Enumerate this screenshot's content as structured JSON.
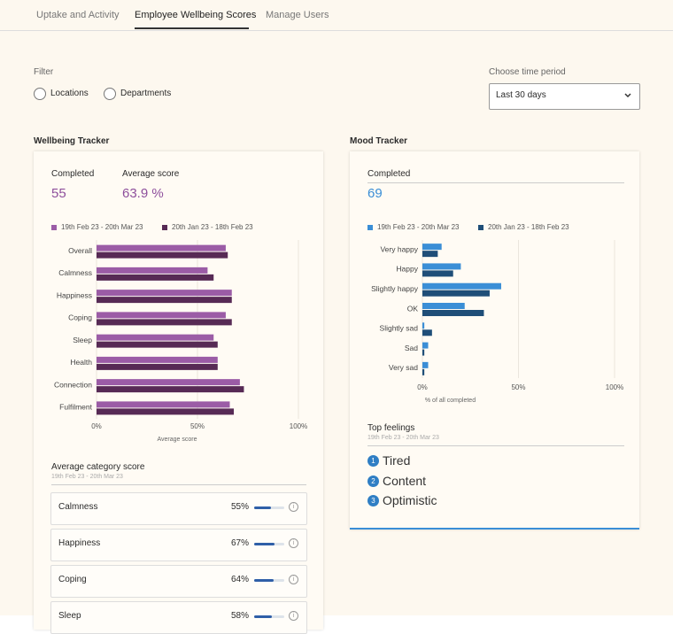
{
  "tabs": {
    "items": [
      "Uptake and Activity",
      "Employee Wellbeing Scores",
      "Manage Users"
    ],
    "active": 1
  },
  "filter": {
    "label": "Filter",
    "options": [
      "Locations",
      "Departments"
    ]
  },
  "time_period": {
    "label": "Choose time period",
    "selected": "Last 30 days"
  },
  "wellbeing": {
    "title": "Wellbeing Tracker",
    "stats": [
      {
        "label": "Completed",
        "value": 55
      },
      {
        "label": "Average score",
        "value": 63.9,
        "value_label": "63.9 %"
      }
    ]
  },
  "mood": {
    "title": "Mood Tracker",
    "stats": [
      {
        "label": "Completed",
        "value": 69
      }
    ]
  },
  "chart_data": [
    {
      "type": "hbar",
      "xlabel": "Average score",
      "categories": [
        "Overall",
        "Calmness",
        "Happiness",
        "Coping",
        "Sleep",
        "Health",
        "Connection",
        "Fulfilment"
      ],
      "series": [
        {
          "name": "19th Feb 23 - 20th Mar 23",
          "color": "#9b5ca6",
          "values": [
            64,
            55,
            67,
            64,
            58,
            60,
            71,
            66
          ]
        },
        {
          "name": "20th Jan 23 - 18th Feb 23",
          "color": "#572a55",
          "values": [
            65,
            58,
            67,
            67,
            60,
            60,
            73,
            68
          ]
        }
      ],
      "xlim": [
        0,
        100
      ],
      "xticks": [
        {
          "value": 0,
          "label": "0%"
        },
        {
          "value": 50,
          "label": "50%"
        },
        {
          "value": 100,
          "label": "100%"
        }
      ]
    },
    {
      "type": "hbar",
      "xlabel": "% of all completed",
      "categories": [
        "Very happy",
        "Happy",
        "Slightly happy",
        "OK",
        "Slightly sad",
        "Sad",
        "Very sad"
      ],
      "series": [
        {
          "name": "19th Feb 23 - 20th Mar 23",
          "color": "#3a8ed6",
          "values": [
            10,
            20,
            41,
            22,
            1,
            3,
            3
          ]
        },
        {
          "name": "20th Jan 23 - 18th Feb 23",
          "color": "#1f4e78",
          "values": [
            8,
            16,
            35,
            32,
            5,
            1,
            1
          ]
        }
      ],
      "xlim": [
        0,
        100
      ],
      "xticks": [
        {
          "value": 0,
          "label": "0%"
        },
        {
          "value": 50,
          "label": "50%"
        },
        {
          "value": 100,
          "label": "100%"
        }
      ]
    }
  ],
  "category_scores": {
    "title": "Average category score",
    "subtitle": "19th Feb 23 - 20th Mar 23",
    "rows": [
      {
        "label": "Calmness",
        "value": 55,
        "value_label": "55%"
      },
      {
        "label": "Happiness",
        "value": 67,
        "value_label": "67%"
      },
      {
        "label": "Coping",
        "value": 64,
        "value_label": "64%"
      },
      {
        "label": "Sleep",
        "value": 58,
        "value_label": "58%"
      }
    ]
  },
  "top_feelings": {
    "title": "Top feelings",
    "subtitle": "19th Feb 23 - 20th Mar 23",
    "items": [
      {
        "rank": 1,
        "label": "Tired"
      },
      {
        "rank": 2,
        "label": "Content"
      },
      {
        "rank": 3,
        "label": "Optimistic"
      }
    ]
  }
}
